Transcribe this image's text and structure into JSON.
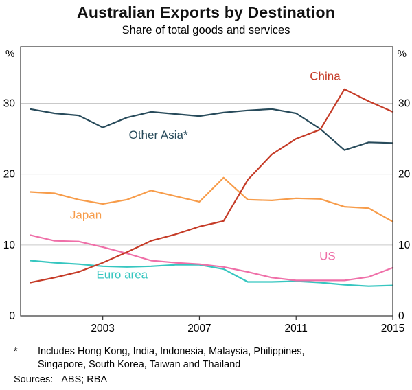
{
  "header": {
    "title": "Australian Exports by Destination",
    "subtitle": "Share of total goods and services"
  },
  "footnote": {
    "marker": "*",
    "lines": [
      "Includes Hong Kong, India, Indonesia, Malaysia, Philippines,",
      "Singapore, South Korea, Taiwan and Thailand"
    ],
    "sources_label": "Sources:",
    "sources_value": "ABS; RBA"
  },
  "chart_data": {
    "type": "line",
    "title": "Australian Exports by Destination",
    "subtitle": "Share of total goods and services",
    "unit": "%",
    "grid": "horizontal",
    "legend_position": "inline-labels",
    "x": [
      2000,
      2001,
      2002,
      2003,
      2004,
      2005,
      2006,
      2007,
      2008,
      2009,
      2010,
      2011,
      2012,
      2013,
      2014,
      2015
    ],
    "xlim": [
      1999.6,
      2015
    ],
    "ylim": [
      0,
      38
    ],
    "xticks": [
      2003,
      2007,
      2011,
      2015
    ],
    "yticks": [
      0,
      10,
      20,
      30
    ],
    "axis_color": "#333333",
    "gridline_color": "#c9c9c9",
    "series": [
      {
        "name": "Euro area",
        "color": "#36c6c0",
        "values": [
          7.8,
          7.5,
          7.3,
          7.0,
          6.9,
          7.0,
          7.2,
          7.2,
          6.6,
          4.8,
          4.8,
          4.9,
          4.7,
          4.4,
          4.2,
          4.3
        ],
        "label": {
          "x": 2003.8,
          "y": 5.3
        }
      },
      {
        "name": "US",
        "color": "#ef6fa8",
        "values": [
          11.4,
          10.6,
          10.5,
          9.7,
          8.8,
          7.8,
          7.5,
          7.3,
          6.9,
          6.2,
          5.4,
          5.0,
          5.0,
          5.0,
          5.5,
          6.8
        ],
        "label": {
          "x": 2012.3,
          "y": 7.9
        }
      },
      {
        "name": "Japan",
        "color": "#f79c4a",
        "values": [
          17.5,
          17.3,
          16.4,
          15.8,
          16.4,
          17.7,
          16.9,
          16.1,
          19.5,
          16.4,
          16.3,
          16.6,
          16.5,
          15.4,
          15.2,
          13.3
        ],
        "label": {
          "x": 2002.3,
          "y": 13.7
        }
      },
      {
        "name": "Other Asia*",
        "color": "#274a5a",
        "values": [
          29.2,
          28.6,
          28.3,
          26.6,
          28.0,
          28.8,
          28.5,
          28.2,
          28.7,
          29.0,
          29.2,
          28.6,
          26.4,
          23.4,
          24.5,
          24.4
        ],
        "label": {
          "x": 2005.3,
          "y": 25.0
        }
      },
      {
        "name": "China",
        "color": "#c53b27",
        "values": [
          4.7,
          5.4,
          6.2,
          7.5,
          9.0,
          10.6,
          11.5,
          12.6,
          13.4,
          19.2,
          22.8,
          25.0,
          26.3,
          32.0,
          30.3,
          28.8
        ],
        "label": {
          "x": 2012.2,
          "y": 33.3
        }
      }
    ]
  }
}
